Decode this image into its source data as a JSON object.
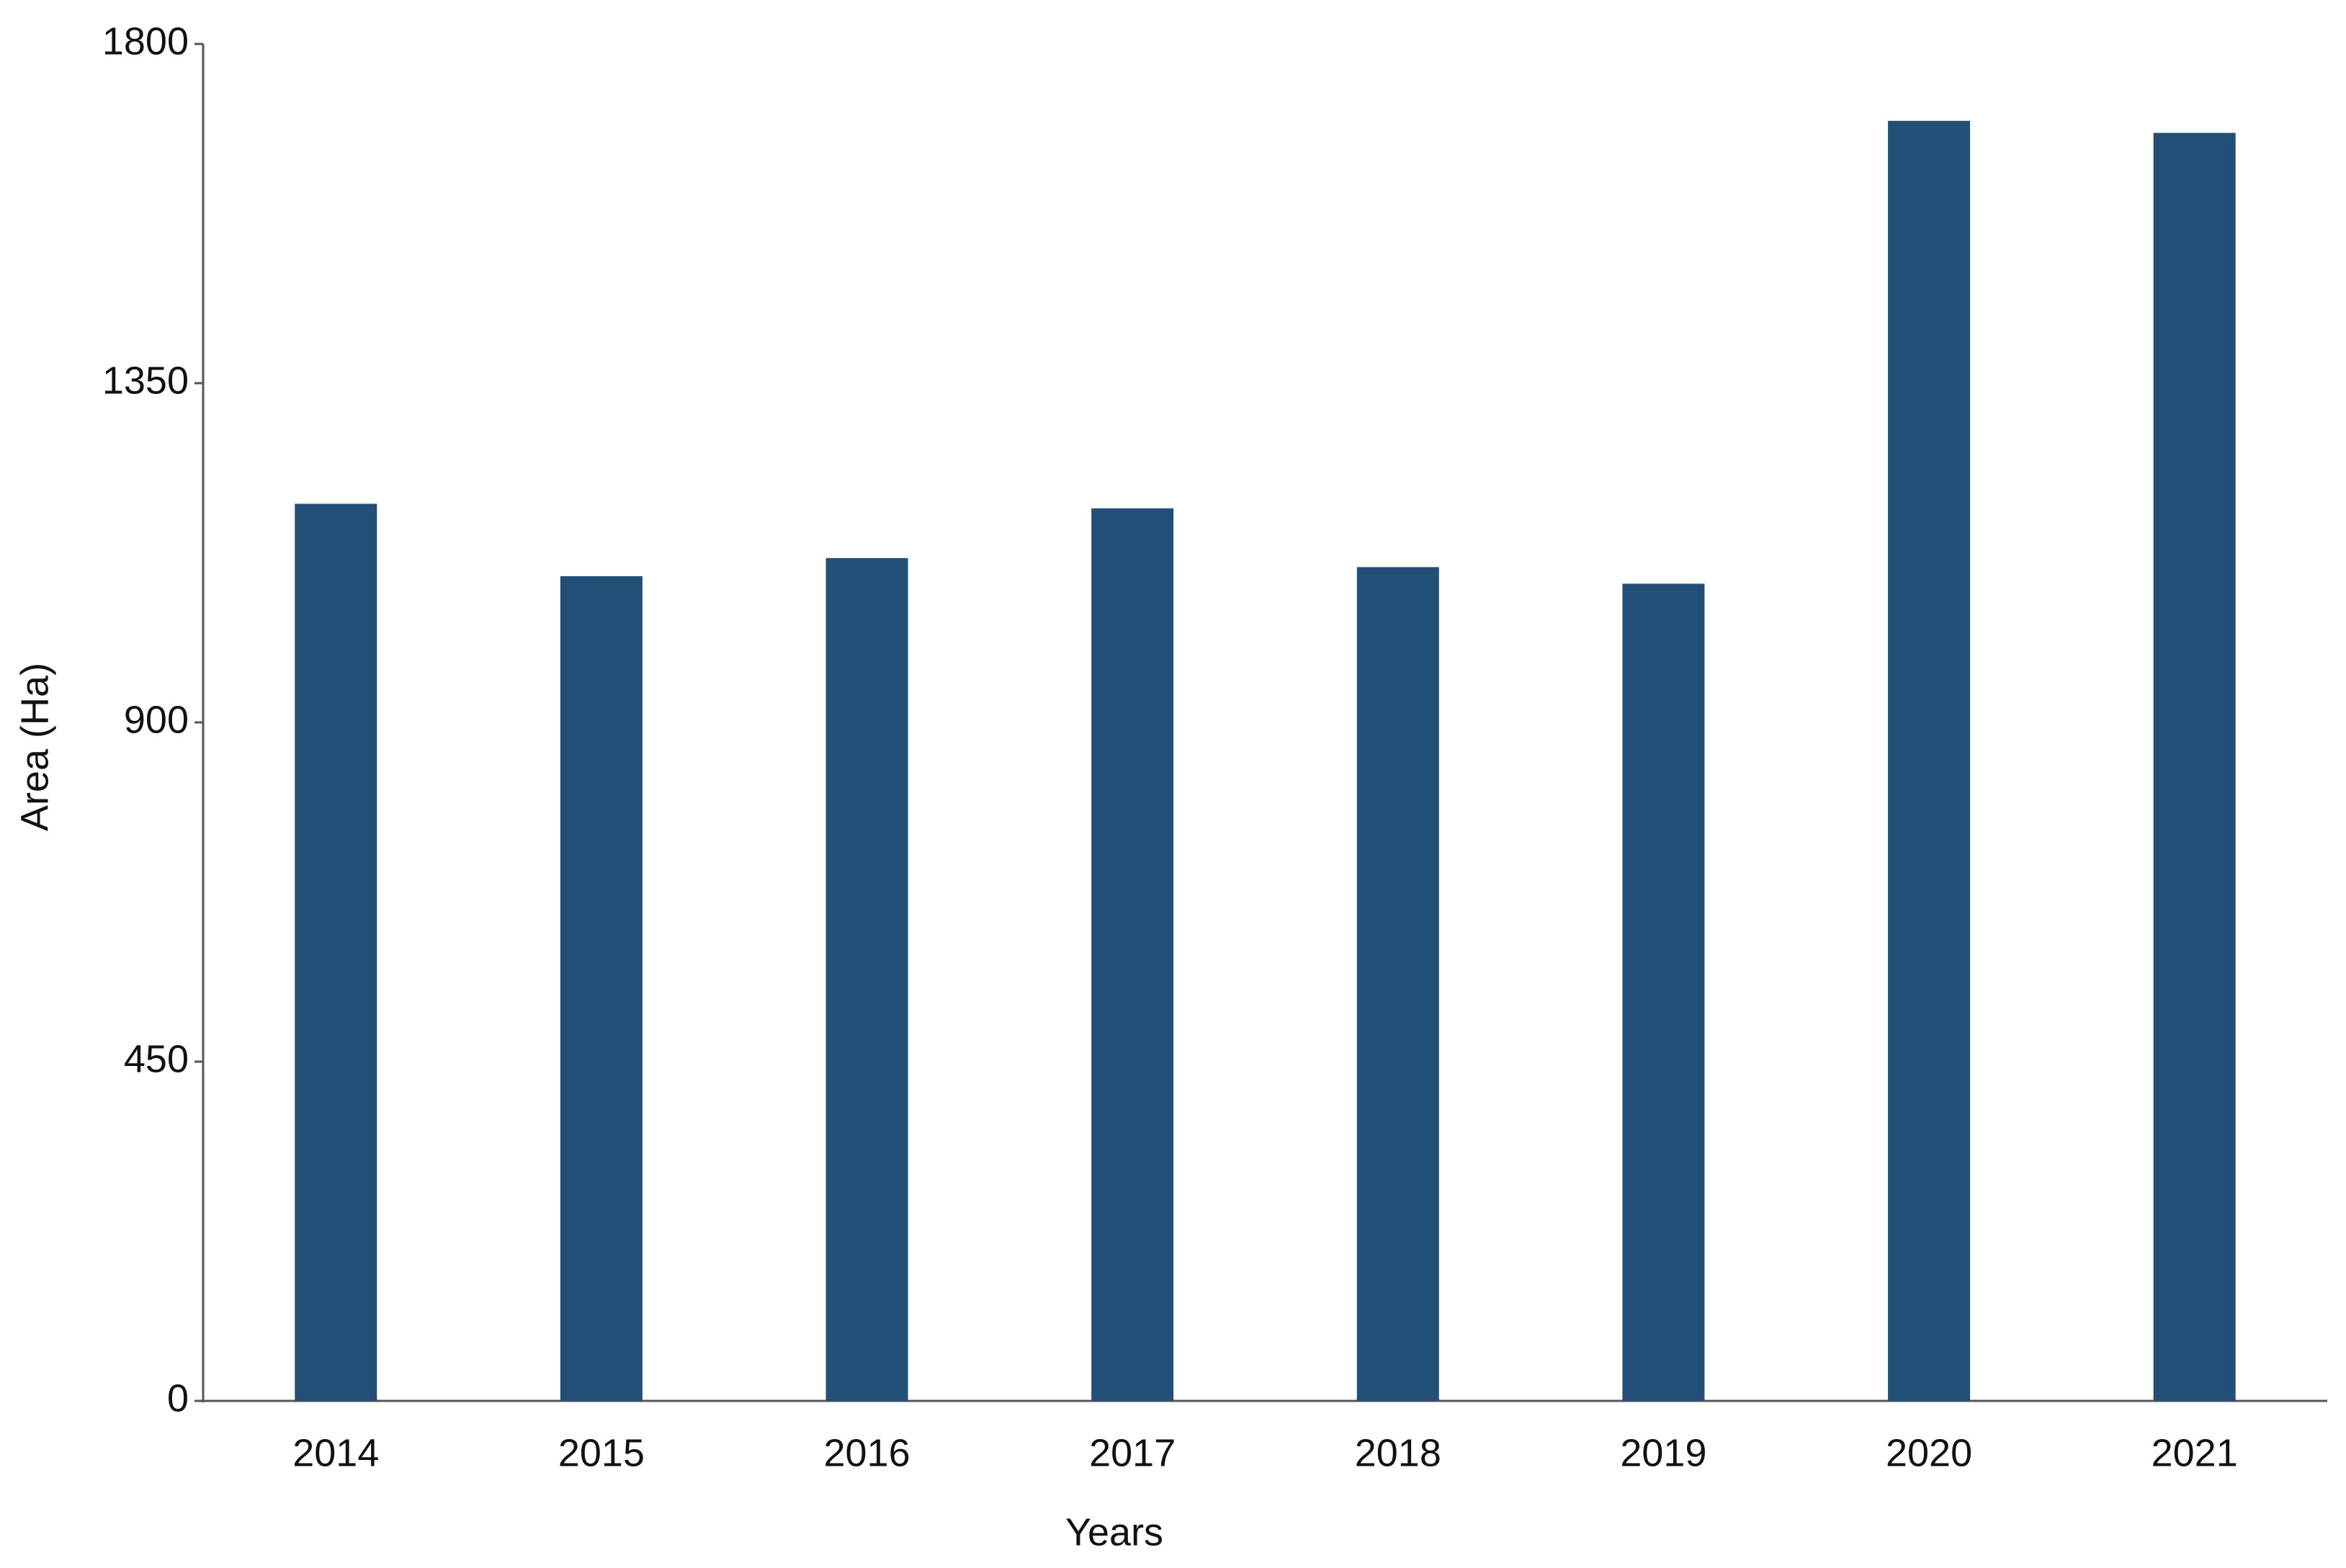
{
  "chart_data": {
    "type": "bar",
    "x_label": "Years",
    "y_label": "Area (Ha)",
    "categories": [
      "2014",
      "2015",
      "2016",
      "2017",
      "2018",
      "2019",
      "2020",
      "2021"
    ],
    "values": [
      1190,
      1094,
      1118,
      1184,
      1106,
      1084,
      1698,
      1682
    ],
    "color": "#214f77",
    "ylim": [
      0,
      1800
    ],
    "yticks": [
      0,
      450,
      900,
      1350,
      1800
    ],
    "grid": false
  }
}
